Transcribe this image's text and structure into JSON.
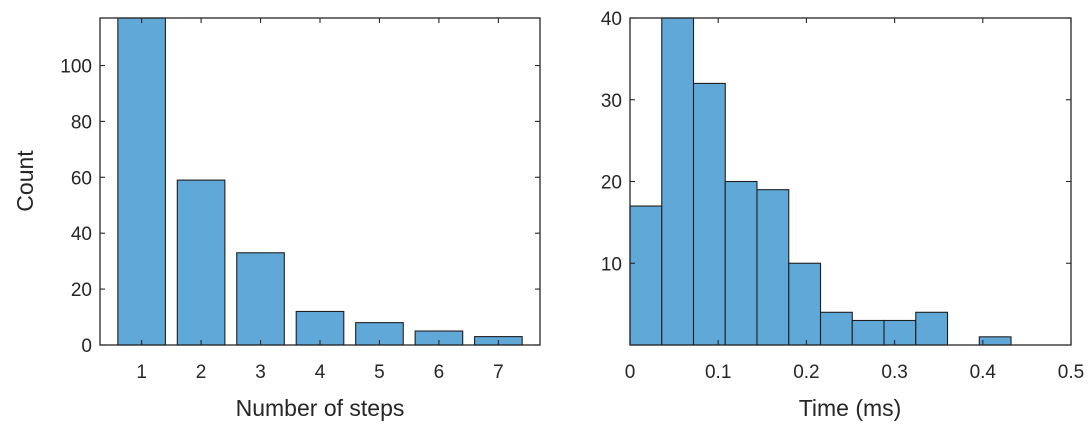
{
  "chart_data": [
    {
      "type": "bar",
      "xlabel": "Number of steps",
      "ylabel": "Count",
      "categories": [
        "1",
        "2",
        "3",
        "4",
        "5",
        "6",
        "7"
      ],
      "values": [
        117,
        59,
        33,
        12,
        8,
        5,
        3
      ],
      "xlim": [
        0.3,
        7.7
      ],
      "ylim": [
        0,
        117
      ],
      "xticks": [
        "1",
        "2",
        "3",
        "4",
        "5",
        "6",
        "7"
      ],
      "yticks": [
        "0",
        "20",
        "40",
        "60",
        "80",
        "100"
      ],
      "color": "#5fa8d8",
      "grid": false
    },
    {
      "type": "histogram",
      "xlabel": "Time (ms)",
      "ylabel": "",
      "bin_width": 0.036,
      "bin_starts": [
        0,
        0.036,
        0.072,
        0.108,
        0.144,
        0.18,
        0.216,
        0.252,
        0.288,
        0.324,
        0.36,
        0.396
      ],
      "values": [
        17,
        40,
        32,
        20,
        19,
        10,
        4,
        3,
        3,
        4,
        0,
        1
      ],
      "xlim": [
        0,
        0.5
      ],
      "ylim": [
        0,
        40
      ],
      "xticks": [
        "0",
        "0.1",
        "0.2",
        "0.3",
        "0.4",
        "0.5"
      ],
      "yticks": [
        "10",
        "20",
        "30",
        "40"
      ],
      "color": "#5fa8d8",
      "grid": false
    }
  ]
}
